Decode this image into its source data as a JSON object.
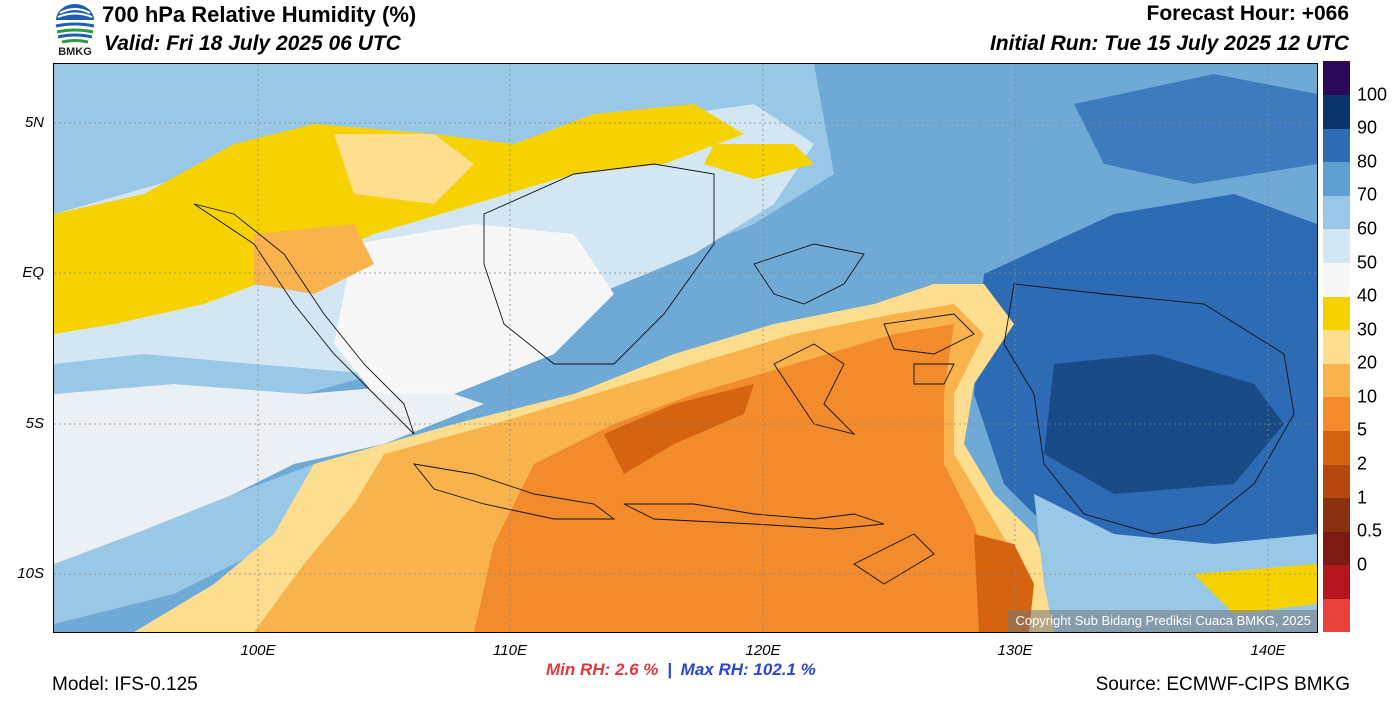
{
  "header": {
    "logo_text": "BMKG",
    "title": "700 hPa Relative Humidity (%)",
    "valid": "Valid: Fri 18 July 2025 06 UTC",
    "forecast_hour": "Forecast Hour: +066",
    "initial_run": "Initial Run: Tue 15 July 2025 12 UTC"
  },
  "map": {
    "lat_ticks": [
      "5N",
      "EQ",
      "5S",
      "10S"
    ],
    "lon_ticks": [
      "100E",
      "110E",
      "120E",
      "130E",
      "140E"
    ],
    "copyright": "Copyright Sub Bidang Prediksi Cuaca BMKG, 2025"
  },
  "colorbar": {
    "labels": [
      "100",
      "90",
      "80",
      "70",
      "60",
      "50",
      "40",
      "30",
      "20",
      "10",
      "5",
      "2",
      "1",
      "0.5",
      "0"
    ],
    "colors": [
      "#e8403a",
      "#b4141c",
      "#7a1a12",
      "#8a3210",
      "#b5480e",
      "#d6630f",
      "#f18b2b",
      "#f8b34c",
      "#fdde8f",
      "#f6d300",
      "#f7f7f7",
      "#d2e6f3",
      "#99c7e6",
      "#5e9fd2",
      "#2d6cb5",
      "#0b3569",
      "#2b0a57"
    ]
  },
  "stats": {
    "min_label": "Min RH:",
    "min_value": "2.6 %",
    "separator": "|",
    "max_label": "Max RH:",
    "max_value": "102.1 %"
  },
  "footer": {
    "model": "Model: IFS-0.125",
    "source": "Source: ECMWF-CIPS BMKG"
  }
}
